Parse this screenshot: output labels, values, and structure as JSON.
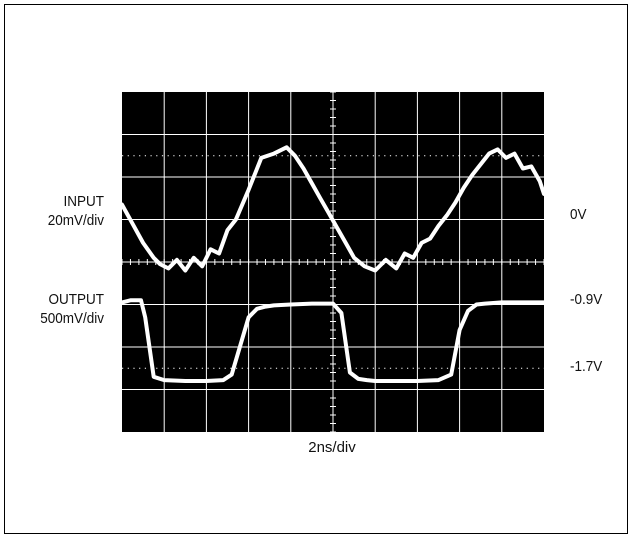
{
  "chart_data": {
    "type": "line",
    "title": "",
    "xlabel": "2ns/div",
    "grid": true,
    "grid_divisions": {
      "x": 10,
      "y": 8
    },
    "x_range_ns": [
      0,
      20
    ],
    "y_range_div": [
      -4,
      4
    ],
    "series": [
      {
        "name": "INPUT",
        "scale": "20mV/div",
        "x": [
          0,
          0.5,
          1.0,
          1.5,
          1.8,
          2.2,
          2.6,
          3.0,
          3.4,
          3.8,
          4.2,
          4.6,
          5.0,
          5.4,
          6.0,
          6.6,
          7.2,
          7.8,
          8.2,
          8.6,
          9.0,
          9.4,
          9.8,
          10.2,
          10.6,
          11.0,
          11.5,
          12.0,
          12.5,
          13.0,
          13.4,
          13.8,
          14.2,
          14.6,
          15.0,
          15.4,
          15.8,
          16.2,
          16.6,
          17.0,
          17.4,
          17.8,
          18.2,
          18.6,
          19.0,
          19.4,
          19.8,
          20.0
        ],
        "y": [
          1.35,
          0.9,
          0.45,
          0.1,
          -0.05,
          -0.15,
          0.05,
          -0.2,
          0.1,
          -0.1,
          0.3,
          0.2,
          0.75,
          1.0,
          1.7,
          2.45,
          2.55,
          2.7,
          2.5,
          2.2,
          1.85,
          1.5,
          1.15,
          0.8,
          0.45,
          0.1,
          -0.1,
          -0.2,
          0.05,
          -0.15,
          0.2,
          0.1,
          0.45,
          0.55,
          0.85,
          1.1,
          1.4,
          1.75,
          2.05,
          2.3,
          2.55,
          2.65,
          2.45,
          2.55,
          2.2,
          2.25,
          1.9,
          1.6
        ]
      },
      {
        "name": "OUTPUT",
        "scale": "500mV/div",
        "x": [
          0,
          0.4,
          0.9,
          1.1,
          1.5,
          2.0,
          3.0,
          4.0,
          4.8,
          5.2,
          6.0,
          6.4,
          6.8,
          7.2,
          8.0,
          9.0,
          10.0,
          10.4,
          10.8,
          11.2,
          11.6,
          12.0,
          12.5,
          13.0,
          14.0,
          15.0,
          15.6,
          16.0,
          16.4,
          16.8,
          17.2,
          18.0,
          19.0,
          20.0
        ],
        "y": [
          -0.95,
          -0.9,
          -0.9,
          -1.3,
          -2.7,
          -2.78,
          -2.8,
          -2.8,
          -2.78,
          -2.65,
          -1.3,
          -1.1,
          -1.05,
          -1.02,
          -1.0,
          -0.98,
          -0.98,
          -1.2,
          -2.6,
          -2.75,
          -2.78,
          -2.8,
          -2.8,
          -2.8,
          -2.8,
          -2.78,
          -2.65,
          -1.6,
          -1.15,
          -1.0,
          -0.98,
          -0.95,
          -0.95,
          -0.95
        ]
      }
    ],
    "annotations": {
      "left": [
        {
          "line1": "INPUT",
          "line2": "20mV/div"
        },
        {
          "line1": "OUTPUT",
          "line2": "500mV/div"
        }
      ],
      "right": [
        "0V",
        "-0.9V",
        "-1.7V"
      ]
    }
  },
  "colors": {
    "screen": "#000000",
    "grid": "#ffffff",
    "trace": "#ffffff",
    "frame": "#000000"
  }
}
